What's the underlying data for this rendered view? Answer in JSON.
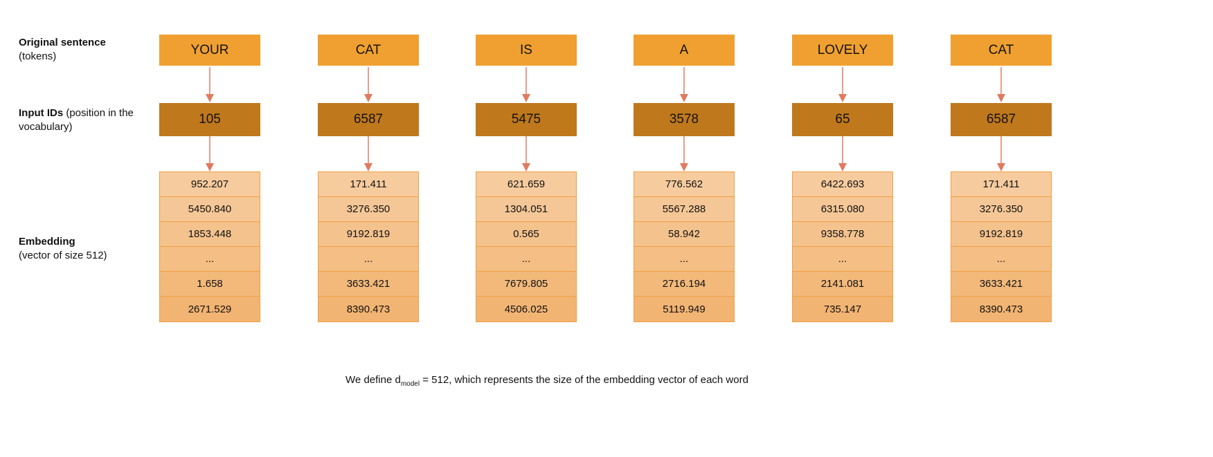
{
  "labels": {
    "tokens_title": "Original sentence",
    "tokens_sub": "(tokens)",
    "ids_title": "Input IDs",
    "ids_sub": "(position in the vocabulary)",
    "emb_title": "Embedding",
    "emb_sub": "(vector of size 512)"
  },
  "columns": [
    {
      "token": "YOUR",
      "id": "105",
      "embedding": [
        "952.207",
        "5450.840",
        "1853.448",
        "...",
        "1.658",
        "2671.529"
      ]
    },
    {
      "token": "CAT",
      "id": "6587",
      "embedding": [
        "171.411",
        "3276.350",
        "9192.819",
        "...",
        "3633.421",
        "8390.473"
      ]
    },
    {
      "token": "IS",
      "id": "5475",
      "embedding": [
        "621.659",
        "1304.051",
        "0.565",
        "...",
        "7679.805",
        "4506.025"
      ]
    },
    {
      "token": "A",
      "id": "3578",
      "embedding": [
        "776.562",
        "5567.288",
        "58.942",
        "...",
        "2716.194",
        "5119.949"
      ]
    },
    {
      "token": "LOVELY",
      "id": "65",
      "embedding": [
        "6422.693",
        "6315.080",
        "9358.778",
        "...",
        "2141.081",
        "735.147"
      ]
    },
    {
      "token": "CAT",
      "id": "6587",
      "embedding": [
        "171.411",
        "3276.350",
        "9192.819",
        "...",
        "3633.421",
        "8390.473"
      ]
    }
  ],
  "caption": {
    "prefix": "We define d",
    "subscript": "model",
    "suffix": " = 512, which represents the size of the embedding vector of each word"
  },
  "colors": {
    "token": "#F0A030",
    "id": "#C0781C",
    "arrow": "#E07A60"
  }
}
